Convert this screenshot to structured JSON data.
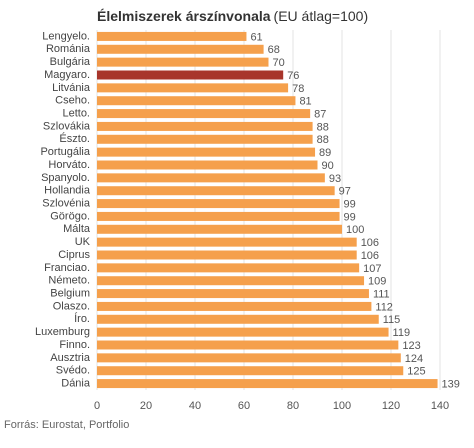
{
  "chart_data": {
    "type": "hbar",
    "title": "Élelmiszerek árszínvonala",
    "subtitle": "(EU átlag=100)",
    "categories": [
      "Lengyelo.",
      "Románia",
      "Bulgária",
      "Magyaro.",
      "Litvánia",
      "Cseho.",
      "Letto.",
      "Szlovákia",
      "Észto.",
      "Portugália",
      "Horváto.",
      "Spanyolo.",
      "Hollandia",
      "Szlovénia",
      "Görögo.",
      "Málta",
      "UK",
      "Ciprus",
      "Franciao.",
      "Németo.",
      "Belgium",
      "Olaszo.",
      "Íro.",
      "Luxemburg",
      "Finno.",
      "Ausztria",
      "Svédo.",
      "Dánia"
    ],
    "values": [
      61,
      68,
      70,
      76,
      78,
      81,
      87,
      88,
      88,
      89,
      90,
      93,
      97,
      99,
      99,
      100,
      106,
      106,
      107,
      109,
      111,
      112,
      115,
      119,
      123,
      124,
      125,
      139
    ],
    "colors": [
      "#f5a04c",
      "#f5a04c",
      "#f5a04c",
      "#a8352b",
      "#f5a04c",
      "#f5a04c",
      "#f5a04c",
      "#f5a04c",
      "#f5a04c",
      "#f5a04c",
      "#f5a04c",
      "#f5a04c",
      "#f5a04c",
      "#f5a04c",
      "#f5a04c",
      "#f5a04c",
      "#f5a04c",
      "#f5a04c",
      "#f5a04c",
      "#f5a04c",
      "#f5a04c",
      "#f5a04c",
      "#f5a04c",
      "#f5a04c",
      "#f5a04c",
      "#f5a04c",
      "#f5a04c",
      "#f5a04c"
    ],
    "xlim": [
      0,
      140
    ],
    "xticks": [
      0,
      20,
      40,
      60,
      80,
      100,
      120,
      140
    ],
    "grid": true,
    "source": "Forrás: Eurostat, Portfolio"
  }
}
